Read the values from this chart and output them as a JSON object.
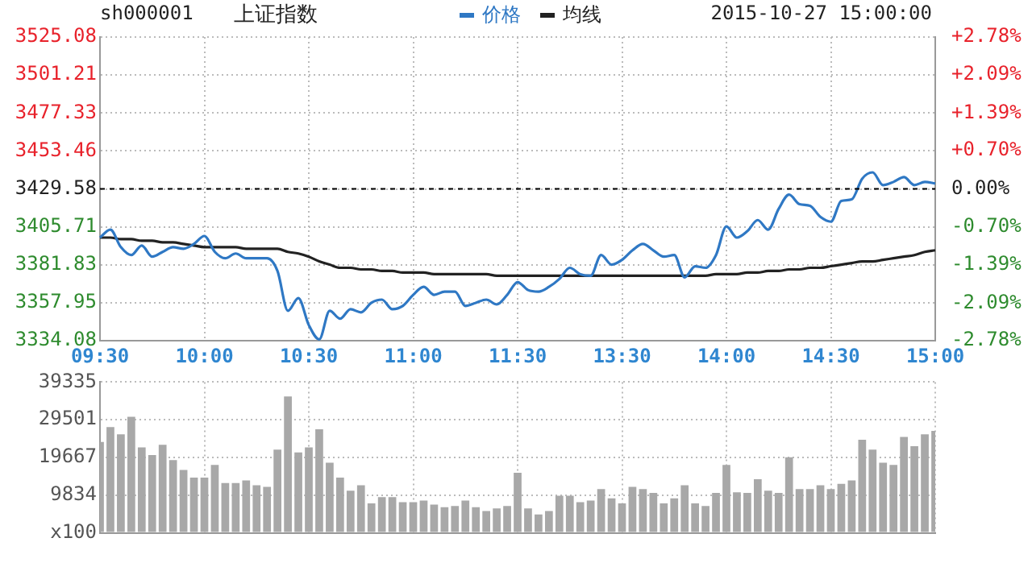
{
  "chart_data": [
    {
      "type": "line",
      "title": "上证指数",
      "subtitle": "sh000001",
      "annotations": [
        "2015-10-27 15:00:00"
      ],
      "categories": [
        "09:30",
        null,
        null,
        null,
        null,
        null,
        null,
        null,
        null,
        null,
        "10:00",
        null,
        null,
        null,
        null,
        null,
        null,
        null,
        null,
        null,
        "10:30",
        null,
        null,
        null,
        null,
        null,
        null,
        null,
        null,
        null,
        "11:00",
        null,
        null,
        null,
        null,
        null,
        null,
        null,
        null,
        null,
        "11:30",
        null,
        null,
        null,
        null,
        null,
        null,
        null,
        null,
        null,
        "13:30",
        null,
        null,
        null,
        null,
        null,
        null,
        null,
        null,
        null,
        "14:00",
        null,
        null,
        null,
        null,
        null,
        null,
        null,
        null,
        null,
        "14:30",
        null,
        null,
        null,
        null,
        null,
        null,
        null,
        null,
        null,
        "15:00"
      ],
      "series": [
        {
          "name": "价格",
          "color": "#2f78c4",
          "values": [
            3399,
            3404,
            3393,
            3388,
            3394,
            3387,
            3390,
            3393,
            3392,
            3395,
            3400,
            3390,
            3386,
            3389,
            3386,
            3386,
            3386,
            3378,
            3353,
            3361,
            3344,
            3335,
            3353,
            3348,
            3354,
            3352,
            3358,
            3360,
            3354,
            3356,
            3363,
            3368,
            3363,
            3365,
            3365,
            3356,
            3358,
            3360,
            3357,
            3363,
            3371,
            3366,
            3365,
            3368,
            3373,
            3380,
            3376,
            3375,
            3388,
            3382,
            3385,
            3391,
            3395,
            3391,
            3387,
            3388,
            3374,
            3381,
            3380,
            3388,
            3406,
            3399,
            3403,
            3410,
            3404,
            3417,
            3426,
            3420,
            3419,
            3412,
            3409,
            3422,
            3423,
            3436,
            3440,
            3432,
            3434,
            3437,
            3432,
            3434,
            3433
          ]
        },
        {
          "name": "均线",
          "color": "#222222",
          "values": [
            3399,
            3399,
            3398,
            3398,
            3397,
            3397,
            3396,
            3396,
            3395,
            3394,
            3393,
            3393,
            3393,
            3393,
            3392,
            3392,
            3392,
            3392,
            3390,
            3389,
            3387,
            3384,
            3382,
            3380,
            3380,
            3379,
            3379,
            3378,
            3378,
            3377,
            3377,
            3377,
            3376,
            3376,
            3376,
            3376,
            3376,
            3376,
            3375,
            3375,
            3375,
            3375,
            3375,
            3375,
            3375,
            3375,
            3375,
            3375,
            3375,
            3375,
            3375,
            3375,
            3375,
            3375,
            3375,
            3375,
            3375,
            3375,
            3375,
            3376,
            3376,
            3376,
            3377,
            3377,
            3378,
            3378,
            3379,
            3379,
            3380,
            3380,
            3381,
            3382,
            3383,
            3384,
            3384,
            3385,
            3386,
            3387,
            3388,
            3390,
            3391
          ]
        }
      ],
      "ylim": [
        3334.08,
        3525.08
      ],
      "yticks": [
        3334.08,
        3357.95,
        3381.83,
        3405.71,
        3429.58,
        3453.46,
        3477.33,
        3501.21,
        3525.08
      ],
      "y2lim": [
        -2.78,
        2.78
      ],
      "y2ticks": [
        {
          "value": -2.78,
          "label": "-2.78%"
        },
        {
          "value": -2.09,
          "label": "-2.09%"
        },
        {
          "value": -1.39,
          "label": "-1.39%"
        },
        {
          "value": -0.7,
          "label": "-0.70%"
        },
        {
          "value": 0,
          "label": "0.00%"
        },
        {
          "value": 0.7,
          "label": "+0.70%"
        },
        {
          "value": 1.39,
          "label": "+1.39%"
        },
        {
          "value": 2.09,
          "label": "+2.09%"
        },
        {
          "value": 2.78,
          "label": "+2.78%"
        }
      ],
      "ref_lines": [
        {
          "axis": "y",
          "value": 3429.58,
          "color": "#000000",
          "line_style": "dashed"
        }
      ],
      "grid": true,
      "legend": "top"
    },
    {
      "type": "bar",
      "color": "#a8a8a8",
      "categories": [
        null,
        null,
        null,
        null,
        null,
        null,
        null,
        null,
        null,
        null,
        null,
        null,
        null,
        null,
        null,
        null,
        null,
        null,
        null,
        null,
        null,
        null,
        null,
        null,
        null,
        null,
        null,
        null,
        null,
        null,
        null,
        null,
        null,
        null,
        null,
        null,
        null,
        null,
        null,
        null,
        null,
        null,
        null,
        null,
        null,
        null,
        null,
        null,
        null,
        null,
        null,
        null,
        null,
        null,
        null,
        null,
        null,
        null,
        null,
        null,
        null,
        null,
        null,
        null,
        null,
        null,
        null,
        null,
        null,
        null,
        null,
        null,
        null,
        null,
        null,
        null,
        null,
        null,
        null,
        null,
        null
      ],
      "values": [
        23700,
        27600,
        25700,
        30300,
        22300,
        20300,
        23000,
        19000,
        16400,
        14400,
        14400,
        17700,
        13000,
        13000,
        13700,
        12400,
        12000,
        21700,
        35600,
        21000,
        22300,
        27000,
        18300,
        14400,
        11000,
        12400,
        7700,
        9300,
        9300,
        8000,
        8000,
        8400,
        7400,
        6700,
        7000,
        8400,
        6700,
        5700,
        6400,
        7000,
        15700,
        6400,
        4800,
        5700,
        9700,
        9700,
        8000,
        8400,
        11400,
        9000,
        7700,
        12000,
        11400,
        10400,
        7700,
        9000,
        12400,
        7700,
        7000,
        10400,
        17700,
        10600,
        10400,
        14000,
        11000,
        10400,
        19700,
        11400,
        11400,
        12400,
        11400,
        12800,
        13700,
        24300,
        21700,
        18300,
        17700,
        25000,
        22600,
        25700,
        26600
      ],
      "ylim": [
        0,
        39335
      ],
      "yticks": [
        {
          "value": 0,
          "label": "x100"
        },
        9834,
        19667,
        29501,
        39335
      ],
      "grid": true,
      "tick_labels": "y"
    }
  ]
}
